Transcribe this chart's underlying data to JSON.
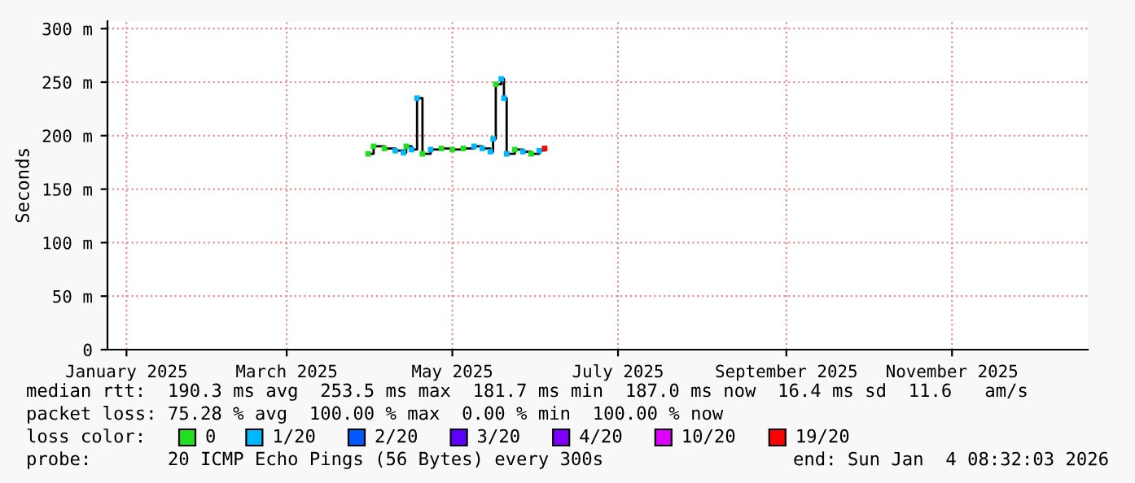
{
  "chart_data": {
    "type": "step",
    "ylabel": "Seconds",
    "legend_title": "loss color:",
    "legend": "bottom",
    "grid": true,
    "x": [
      "2025-03-31",
      "2025-04-02",
      "2025-04-06",
      "2025-04-10",
      "2025-04-13",
      "2025-04-14",
      "2025-04-16",
      "2025-04-18",
      "2025-04-20",
      "2025-04-23",
      "2025-04-27",
      "2025-05-01",
      "2025-05-05",
      "2025-05-09",
      "2025-05-12",
      "2025-05-15",
      "2025-05-16",
      "2025-05-17",
      "2025-05-19",
      "2025-05-20",
      "2025-05-21",
      "2025-05-24",
      "2025-05-27",
      "2025-05-30",
      "2025-06-02",
      "2025-06-04"
    ],
    "series": [
      {
        "color": "#000000",
        "values": [
          183,
          190,
          188,
          186,
          184,
          190,
          187,
          235,
          183,
          187,
          188,
          187,
          188,
          190,
          188,
          185,
          197,
          248,
          253,
          235,
          183,
          187,
          185,
          183,
          186,
          188
        ]
      },
      {
        "type": "scatter",
        "marker": "square",
        "name": "0",
        "color": "#20e020",
        "values": [
          183,
          190,
          188,
          null,
          null,
          190,
          null,
          null,
          183,
          null,
          188,
          187,
          188,
          null,
          null,
          null,
          null,
          248,
          null,
          null,
          null,
          187,
          null,
          183,
          null,
          null
        ]
      },
      {
        "type": "scatter",
        "marker": "square",
        "name": "1/20",
        "color": "#00b8ff",
        "values": [
          null,
          null,
          null,
          186,
          184,
          null,
          187,
          235,
          null,
          187,
          null,
          null,
          null,
          190,
          188,
          185,
          197,
          null,
          253,
          235,
          183,
          null,
          185,
          null,
          186,
          null
        ]
      },
      {
        "type": "scatter",
        "marker": "square",
        "name": "2/20",
        "color": "#0059ff",
        "values": [
          null,
          null,
          null,
          null,
          null,
          null,
          null,
          null,
          null,
          null,
          null,
          null,
          null,
          null,
          null,
          null,
          null,
          null,
          null,
          null,
          null,
          null,
          null,
          null,
          null,
          null
        ]
      },
      {
        "type": "scatter",
        "marker": "square",
        "name": "3/20",
        "color": "#5e00ff",
        "values": [
          null,
          null,
          null,
          null,
          null,
          null,
          null,
          null,
          null,
          null,
          null,
          null,
          null,
          null,
          null,
          null,
          null,
          null,
          null,
          null,
          null,
          null,
          null,
          null,
          null,
          null
        ]
      },
      {
        "type": "scatter",
        "marker": "square",
        "name": "4/20",
        "color": "#7e00ff",
        "values": [
          null,
          null,
          null,
          null,
          null,
          null,
          null,
          null,
          null,
          null,
          null,
          null,
          null,
          null,
          null,
          null,
          null,
          null,
          null,
          null,
          null,
          null,
          null,
          null,
          null,
          null
        ]
      },
      {
        "type": "scatter",
        "marker": "square",
        "name": "10/20",
        "color": "#dd00ff",
        "values": [
          null,
          null,
          null,
          null,
          null,
          null,
          null,
          null,
          null,
          null,
          null,
          null,
          null,
          null,
          null,
          null,
          null,
          null,
          null,
          null,
          null,
          null,
          null,
          null,
          null,
          null
        ]
      },
      {
        "type": "scatter",
        "marker": "square",
        "name": "19/20",
        "color": "#ff0000",
        "values": [
          null,
          null,
          null,
          null,
          null,
          null,
          null,
          null,
          null,
          null,
          null,
          null,
          null,
          null,
          null,
          null,
          null,
          null,
          null,
          null,
          null,
          null,
          null,
          null,
          null,
          188
        ]
      }
    ],
    "xlim": [
      "2024-12-25",
      "2025-12-21"
    ],
    "xticks": [
      {
        "value": "2025-01-01",
        "label": "January 2025"
      },
      {
        "value": "2025-03-01",
        "label": "March 2025"
      },
      {
        "value": "2025-05-01",
        "label": "May 2025"
      },
      {
        "value": "2025-07-01",
        "label": "July 2025"
      },
      {
        "value": "2025-09-01",
        "label": "September 2025"
      },
      {
        "value": "2025-11-01",
        "label": "November 2025"
      }
    ],
    "ylim": [
      0,
      307
    ],
    "yticks": [
      {
        "value": 0,
        "label": "0"
      },
      {
        "value": 50,
        "label": "50 m"
      },
      {
        "value": 100,
        "label": "100 m"
      },
      {
        "value": 150,
        "label": "150 m"
      },
      {
        "value": 200,
        "label": "200 m"
      },
      {
        "value": 250,
        "label": "250 m"
      },
      {
        "value": 300,
        "label": "300 m"
      }
    ],
    "annotations": [
      "median rtt:  190.3 ms avg  253.5 ms max  181.7 ms min  187.0 ms now  16.4 ms sd  11.6   am/s",
      "packet loss: 75.28 % avg  100.00 % max  0.00 % min  100.00 % now",
      "probe:       20 ICMP Echo Pings (56 Bytes) every 300s",
      "end: Sun Jan  4 08:32:03 2026"
    ]
  }
}
